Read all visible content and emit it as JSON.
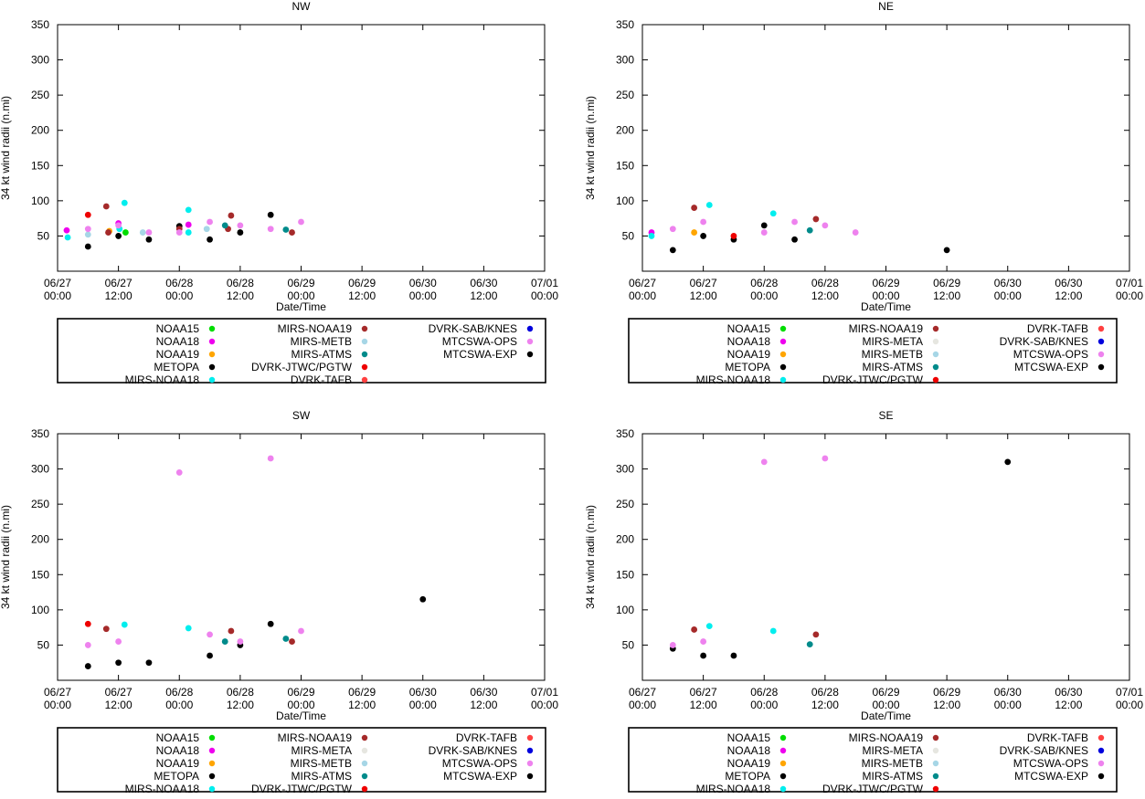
{
  "colors": {
    "NOAA15": "#00dd00",
    "NOAA18": "#ee00ee",
    "NOAA19": "#ffa500",
    "METOPA": "#000000",
    "MIRS-NOAA18": "#00eeee",
    "MIRS-NOAA19": "#a52a2a",
    "MIRS-META": "#e6e6e0",
    "MIRS-METB": "#a6d6e6",
    "MIRS-ATMS": "#008b8b",
    "DVRK-JTWC/PGTW": "#ee0000",
    "DVRK-TAFB": "#ff4040",
    "DVRK-SAB/KNES": "#0000dd",
    "MTCSWA-OPS": "#ee82ee",
    "MTCSWA-EXP": "#000000"
  },
  "chart_data": [
    {
      "type": "scatter",
      "title": "NW",
      "xlabel": "Date/Time",
      "ylabel": "34 kt wind radii (n.mi)",
      "x_unit": "hours since 06/27 00:00",
      "xlim": [
        0,
        96
      ],
      "ylim": [
        0,
        350
      ],
      "yticks": [
        50,
        100,
        150,
        200,
        250,
        300,
        350
      ],
      "xticks": [
        {
          "h": 0,
          "date": "06/27",
          "time": "00:00"
        },
        {
          "h": 12,
          "date": "06/27",
          "time": "12:00"
        },
        {
          "h": 24,
          "date": "06/28",
          "time": "00:00"
        },
        {
          "h": 36,
          "date": "06/28",
          "time": "12:00"
        },
        {
          "h": 48,
          "date": "06/29",
          "time": "00:00"
        },
        {
          "h": 60,
          "date": "06/29",
          "time": "12:00"
        },
        {
          "h": 72,
          "date": "06/30",
          "time": "00:00"
        },
        {
          "h": 84,
          "date": "06/30",
          "time": "12:00"
        },
        {
          "h": 96,
          "date": "07/01",
          "time": "00:00"
        }
      ],
      "legend": [
        "NOAA15",
        "NOAA18",
        "NOAA19",
        "METOPA",
        "MIRS-NOAA18",
        "MIRS-NOAA19",
        "MIRS-METB",
        "MIRS-ATMS",
        "DVRK-JTWC/PGTW",
        "DVRK-TAFB",
        "DVRK-SAB/KNES",
        "MTCSWA-OPS",
        "MTCSWA-EXP"
      ],
      "series": [
        {
          "name": "NOAA15",
          "points": [
            [
              13.4,
              55
            ]
          ]
        },
        {
          "name": "NOAA18",
          "points": [
            [
              1.8,
              58
            ],
            [
              12.0,
              68
            ],
            [
              25.8,
              66
            ]
          ]
        },
        {
          "name": "NOAA19",
          "points": [
            [
              10.2,
              57
            ]
          ]
        },
        {
          "name": "METOPA",
          "points": [
            [
              6.0,
              35
            ],
            [
              12.0,
              50
            ],
            [
              18.0,
              45
            ],
            [
              24.0,
              64
            ],
            [
              30.0,
              45
            ],
            [
              36.0,
              55
            ],
            [
              42.0,
              80
            ]
          ]
        },
        {
          "name": "MIRS-NOAA18",
          "points": [
            [
              2.0,
              48
            ],
            [
              13.2,
              97
            ],
            [
              25.8,
              87
            ],
            [
              25.8,
              55
            ],
            [
              12.2,
              60
            ]
          ]
        },
        {
          "name": "MIRS-NOAA19",
          "points": [
            [
              9.6,
              92
            ],
            [
              10.0,
              55
            ],
            [
              24.0,
              60
            ],
            [
              33.6,
              60
            ],
            [
              34.2,
              79
            ],
            [
              46.2,
              55
            ]
          ]
        },
        {
          "name": "MIRS-METB",
          "points": [
            [
              6.0,
              52
            ],
            [
              16.8,
              55
            ],
            [
              29.4,
              60
            ]
          ]
        },
        {
          "name": "MIRS-ATMS",
          "points": [
            [
              33.0,
              65
            ],
            [
              45.0,
              59
            ]
          ]
        },
        {
          "name": "DVRK-JTWC/PGTW",
          "points": [
            [
              6.0,
              80
            ]
          ]
        },
        {
          "name": "MTCSWA-OPS",
          "points": [
            [
              6.0,
              60
            ],
            [
              12.0,
              65
            ],
            [
              18.0,
              55
            ],
            [
              24.0,
              55
            ],
            [
              30.0,
              70
            ],
            [
              36.0,
              65
            ],
            [
              42.0,
              60
            ],
            [
              48.0,
              70
            ]
          ]
        }
      ]
    },
    {
      "type": "scatter",
      "title": "NE",
      "xlabel": "Date/Time",
      "ylabel": "34 kt wind radii (n.mi)",
      "x_unit": "hours since 06/27 00:00",
      "xlim": [
        0,
        96
      ],
      "ylim": [
        0,
        350
      ],
      "yticks": [
        50,
        100,
        150,
        200,
        250,
        300,
        350
      ],
      "xticks": [
        {
          "h": 0,
          "date": "06/27",
          "time": "00:00"
        },
        {
          "h": 12,
          "date": "06/27",
          "time": "12:00"
        },
        {
          "h": 24,
          "date": "06/28",
          "time": "00:00"
        },
        {
          "h": 36,
          "date": "06/28",
          "time": "12:00"
        },
        {
          "h": 48,
          "date": "06/29",
          "time": "00:00"
        },
        {
          "h": 60,
          "date": "06/29",
          "time": "12:00"
        },
        {
          "h": 72,
          "date": "06/30",
          "time": "00:00"
        },
        {
          "h": 84,
          "date": "06/30",
          "time": "12:00"
        },
        {
          "h": 96,
          "date": "07/01",
          "time": "00:00"
        }
      ],
      "legend": [
        "NOAA15",
        "NOAA18",
        "NOAA19",
        "METOPA",
        "MIRS-NOAA18",
        "MIRS-NOAA19",
        "MIRS-META",
        "MIRS-METB",
        "MIRS-ATMS",
        "DVRK-JTWC/PGTW",
        "DVRK-TAFB",
        "DVRK-SAB/KNES",
        "MTCSWA-OPS",
        "MTCSWA-EXP"
      ],
      "series": [
        {
          "name": "NOAA18",
          "points": [
            [
              1.8,
              55
            ]
          ]
        },
        {
          "name": "NOAA19",
          "points": [
            [
              10.2,
              55
            ]
          ]
        },
        {
          "name": "METOPA",
          "points": [
            [
              6.0,
              30
            ],
            [
              12.0,
              50
            ],
            [
              18.0,
              45
            ],
            [
              24.0,
              65
            ],
            [
              30.0,
              45
            ],
            [
              60.0,
              30
            ]
          ]
        },
        {
          "name": "MIRS-NOAA18",
          "points": [
            [
              1.8,
              50
            ],
            [
              13.2,
              94
            ],
            [
              25.8,
              82
            ]
          ]
        },
        {
          "name": "MIRS-NOAA19",
          "points": [
            [
              10.2,
              90
            ],
            [
              34.2,
              74
            ]
          ]
        },
        {
          "name": "MIRS-ATMS",
          "points": [
            [
              33.0,
              58
            ]
          ]
        },
        {
          "name": "DVRK-JTWC/PGTW",
          "points": [
            [
              18.0,
              50
            ]
          ]
        },
        {
          "name": "MTCSWA-OPS",
          "points": [
            [
              6.0,
              60
            ],
            [
              12.0,
              70
            ],
            [
              24.0,
              55
            ],
            [
              30.0,
              70
            ],
            [
              36.0,
              65
            ],
            [
              42.0,
              55
            ]
          ]
        }
      ]
    },
    {
      "type": "scatter",
      "title": "SW",
      "xlabel": "Date/Time",
      "ylabel": "34 kt wind radii (n.mi)",
      "x_unit": "hours since 06/27 00:00",
      "xlim": [
        0,
        96
      ],
      "ylim": [
        0,
        350
      ],
      "yticks": [
        50,
        100,
        150,
        200,
        250,
        300,
        350
      ],
      "xticks": [
        {
          "h": 0,
          "date": "06/27",
          "time": "00:00"
        },
        {
          "h": 12,
          "date": "06/27",
          "time": "12:00"
        },
        {
          "h": 24,
          "date": "06/28",
          "time": "00:00"
        },
        {
          "h": 36,
          "date": "06/28",
          "time": "12:00"
        },
        {
          "h": 48,
          "date": "06/29",
          "time": "00:00"
        },
        {
          "h": 60,
          "date": "06/29",
          "time": "12:00"
        },
        {
          "h": 72,
          "date": "06/30",
          "time": "00:00"
        },
        {
          "h": 84,
          "date": "06/30",
          "time": "12:00"
        },
        {
          "h": 96,
          "date": "07/01",
          "time": "00:00"
        }
      ],
      "legend": [
        "NOAA15",
        "NOAA18",
        "NOAA19",
        "METOPA",
        "MIRS-NOAA18",
        "MIRS-NOAA19",
        "MIRS-META",
        "MIRS-METB",
        "MIRS-ATMS",
        "DVRK-JTWC/PGTW",
        "DVRK-TAFB",
        "DVRK-SAB/KNES",
        "MTCSWA-OPS",
        "MTCSWA-EXP"
      ],
      "series": [
        {
          "name": "METOPA",
          "points": [
            [
              6.0,
              20
            ],
            [
              12.0,
              25
            ],
            [
              18.0,
              25
            ],
            [
              30.0,
              35
            ],
            [
              36.0,
              50
            ],
            [
              42.0,
              80
            ],
            [
              72.0,
              115
            ]
          ]
        },
        {
          "name": "MIRS-NOAA18",
          "points": [
            [
              13.2,
              79
            ],
            [
              25.8,
              74
            ]
          ]
        },
        {
          "name": "MIRS-NOAA19",
          "points": [
            [
              9.6,
              73
            ],
            [
              34.2,
              70
            ],
            [
              46.2,
              55
            ]
          ]
        },
        {
          "name": "MIRS-ATMS",
          "points": [
            [
              33.0,
              55
            ],
            [
              45.0,
              59
            ]
          ]
        },
        {
          "name": "DVRK-JTWC/PGTW",
          "points": [
            [
              6.0,
              80
            ]
          ]
        },
        {
          "name": "MTCSWA-OPS",
          "points": [
            [
              6.0,
              50
            ],
            [
              12.0,
              55
            ],
            [
              24.0,
              295
            ],
            [
              30.0,
              65
            ],
            [
              36.0,
              55
            ],
            [
              42.0,
              315
            ],
            [
              48.0,
              70
            ]
          ]
        }
      ]
    },
    {
      "type": "scatter",
      "title": "SE",
      "xlabel": "Date/Time",
      "ylabel": "34 kt wind radii (n.mi)",
      "x_unit": "hours since 06/27 00:00",
      "xlim": [
        0,
        96
      ],
      "ylim": [
        0,
        350
      ],
      "yticks": [
        50,
        100,
        150,
        200,
        250,
        300,
        350
      ],
      "xticks": [
        {
          "h": 0,
          "date": "06/27",
          "time": "00:00"
        },
        {
          "h": 12,
          "date": "06/27",
          "time": "12:00"
        },
        {
          "h": 24,
          "date": "06/28",
          "time": "00:00"
        },
        {
          "h": 36,
          "date": "06/28",
          "time": "12:00"
        },
        {
          "h": 48,
          "date": "06/29",
          "time": "00:00"
        },
        {
          "h": 60,
          "date": "06/29",
          "time": "12:00"
        },
        {
          "h": 72,
          "date": "06/30",
          "time": "00:00"
        },
        {
          "h": 84,
          "date": "06/30",
          "time": "12:00"
        },
        {
          "h": 96,
          "date": "07/01",
          "time": "00:00"
        }
      ],
      "legend": [
        "NOAA15",
        "NOAA18",
        "NOAA19",
        "METOPA",
        "MIRS-NOAA18",
        "MIRS-NOAA19",
        "MIRS-META",
        "MIRS-METB",
        "MIRS-ATMS",
        "DVRK-JTWC/PGTW",
        "DVRK-TAFB",
        "DVRK-SAB/KNES",
        "MTCSWA-OPS",
        "MTCSWA-EXP"
      ],
      "series": [
        {
          "name": "METOPA",
          "points": [
            [
              6.0,
              45
            ],
            [
              12.0,
              35
            ],
            [
              18.0,
              35
            ],
            [
              72.0,
              310
            ]
          ]
        },
        {
          "name": "MIRS-NOAA18",
          "points": [
            [
              13.2,
              77
            ],
            [
              25.8,
              70
            ]
          ]
        },
        {
          "name": "MIRS-NOAA19",
          "points": [
            [
              10.2,
              72
            ],
            [
              34.2,
              65
            ]
          ]
        },
        {
          "name": "MIRS-ATMS",
          "points": [
            [
              33.0,
              51
            ]
          ]
        },
        {
          "name": "MTCSWA-OPS",
          "points": [
            [
              6.0,
              50
            ],
            [
              12.0,
              55
            ],
            [
              24.0,
              310
            ],
            [
              36.0,
              315
            ]
          ]
        }
      ]
    }
  ]
}
